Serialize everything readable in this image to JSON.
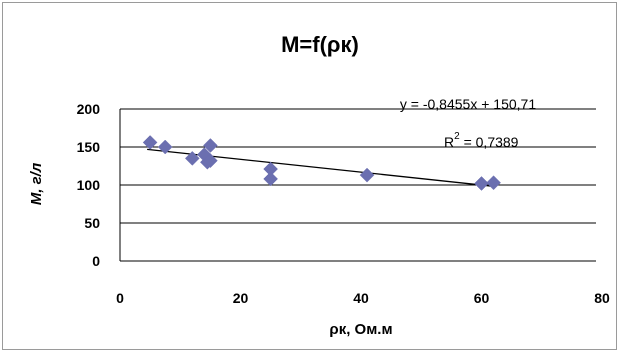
{
  "chart_data": {
    "type": "scatter",
    "title": "M=f(ρк)",
    "xlabel": "ρк, Ом.м",
    "ylabel": "M, г/л",
    "xlim": [
      0,
      80
    ],
    "ylim": [
      0,
      200
    ],
    "x_ticks": [
      "0",
      "20",
      "40",
      "60",
      "80"
    ],
    "y_ticks": [
      "0",
      "50",
      "100",
      "150",
      "200"
    ],
    "grid": "horizontal",
    "series": [
      {
        "color": "#6b6fb0",
        "marker": "diamond",
        "points": [
          {
            "x": 5,
            "y": 156
          },
          {
            "x": 7.5,
            "y": 150
          },
          {
            "x": 12,
            "y": 135
          },
          {
            "x": 14,
            "y": 140
          },
          {
            "x": 14.5,
            "y": 130
          },
          {
            "x": 15,
            "y": 132
          },
          {
            "x": 15,
            "y": 152
          },
          {
            "x": 25,
            "y": 121
          },
          {
            "x": 25,
            "y": 108
          },
          {
            "x": 41,
            "y": 113
          },
          {
            "x": 60,
            "y": 102
          },
          {
            "x": 62,
            "y": 103
          }
        ]
      }
    ],
    "trendline": {
      "slope": -0.8455,
      "intercept": 150.71,
      "x_range": [
        4.5,
        62
      ],
      "color": "#000000"
    },
    "annotations": {
      "equation": "y = -0,8455x + 150,71",
      "r2_prefix": "R",
      "r2_sup": "2",
      "r2_value": " = 0,7389"
    }
  }
}
